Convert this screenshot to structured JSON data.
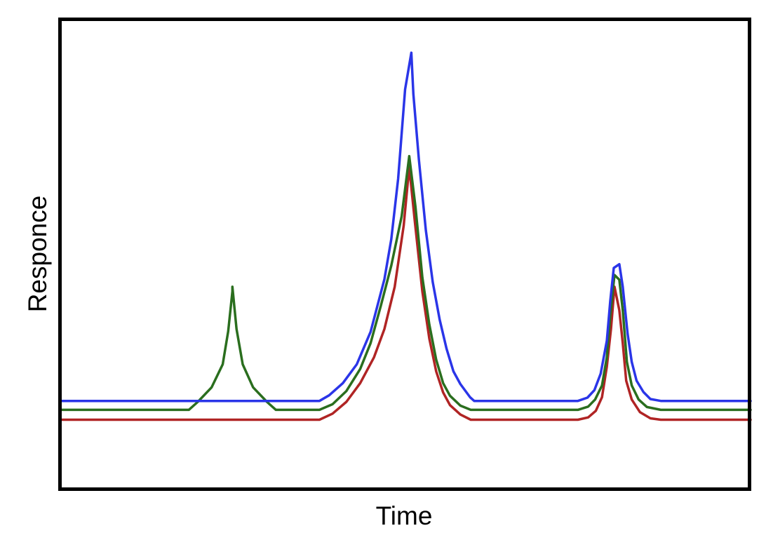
{
  "chart_data": {
    "type": "line",
    "title": "",
    "xlabel": "Time",
    "ylabel": "Responce",
    "grid": false,
    "legend": "none",
    "xlim": [
      0,
      100
    ],
    "ylim": [
      0,
      100
    ],
    "series": [
      {
        "color": "#2a35e8",
        "points": [
          [
            0,
            18.7
          ],
          [
            37.6,
            18.7
          ],
          [
            39,
            19.9
          ],
          [
            41,
            22.5
          ],
          [
            43,
            26.5
          ],
          [
            45,
            33.4
          ],
          [
            47,
            44.6
          ],
          [
            48,
            53.1
          ],
          [
            49,
            66
          ],
          [
            50,
            85
          ],
          [
            50.9,
            92.8
          ],
          [
            51.2,
            84
          ],
          [
            52,
            70
          ],
          [
            53,
            55
          ],
          [
            54,
            44
          ],
          [
            55,
            36
          ],
          [
            56,
            29.8
          ],
          [
            57,
            25
          ],
          [
            58,
            22.3
          ],
          [
            59.4,
            19.5
          ],
          [
            60,
            18.7
          ],
          [
            75,
            18.7
          ],
          [
            76.4,
            19.4
          ],
          [
            77.4,
            21
          ],
          [
            78.3,
            24.5
          ],
          [
            79.2,
            31.5
          ],
          [
            79.7,
            40
          ],
          [
            80.2,
            47
          ],
          [
            81,
            47.8
          ],
          [
            81.5,
            43
          ],
          [
            82.2,
            33
          ],
          [
            82.8,
            27
          ],
          [
            83.5,
            23
          ],
          [
            84.5,
            20.6
          ],
          [
            85.5,
            19.1
          ],
          [
            87,
            18.7
          ],
          [
            100,
            18.7
          ]
        ]
      },
      {
        "color": "#2a6e1e",
        "points": [
          [
            0,
            16.8
          ],
          [
            18.7,
            16.8
          ],
          [
            20,
            18.5
          ],
          [
            22,
            21.6
          ],
          [
            23.6,
            26.5
          ],
          [
            24.4,
            33.5
          ],
          [
            25,
            42
          ],
          [
            25,
            43
          ],
          [
            25.6,
            34
          ],
          [
            26.5,
            26.5
          ],
          [
            28,
            21.6
          ],
          [
            30,
            18.5
          ],
          [
            31.3,
            16.8
          ],
          [
            37.6,
            16.8
          ],
          [
            39.5,
            18
          ],
          [
            41.5,
            20.8
          ],
          [
            43.5,
            25.5
          ],
          [
            45,
            31
          ],
          [
            46.5,
            39
          ],
          [
            48,
            47.5
          ],
          [
            49.5,
            58
          ],
          [
            50.6,
            70.8
          ],
          [
            51.5,
            60
          ],
          [
            52.5,
            45
          ],
          [
            53.5,
            35
          ],
          [
            54.5,
            27.5
          ],
          [
            55.5,
            22.5
          ],
          [
            56.5,
            19.8
          ],
          [
            58,
            17.7
          ],
          [
            59.5,
            16.8
          ],
          [
            75,
            16.8
          ],
          [
            76.5,
            17.5
          ],
          [
            77.5,
            19
          ],
          [
            78.5,
            22
          ],
          [
            79.2,
            28
          ],
          [
            79.7,
            37
          ],
          [
            80.3,
            45.5
          ],
          [
            81,
            44.5
          ],
          [
            81.5,
            38
          ],
          [
            82.1,
            27
          ],
          [
            82.8,
            22
          ],
          [
            83.8,
            19
          ],
          [
            85,
            17.4
          ],
          [
            87,
            16.8
          ],
          [
            100,
            16.8
          ]
        ]
      },
      {
        "color": "#b02424",
        "points": [
          [
            0,
            14.7
          ],
          [
            37.6,
            14.7
          ],
          [
            39.5,
            16
          ],
          [
            41.5,
            18.5
          ],
          [
            43.5,
            22.5
          ],
          [
            45.5,
            28
          ],
          [
            47,
            34
          ],
          [
            48.5,
            43
          ],
          [
            49.8,
            56
          ],
          [
            50.6,
            68.5
          ],
          [
            51.4,
            57
          ],
          [
            52.5,
            42
          ],
          [
            53.5,
            32
          ],
          [
            54.5,
            25
          ],
          [
            55.5,
            20.5
          ],
          [
            56.5,
            17.8
          ],
          [
            58,
            15.8
          ],
          [
            59.5,
            14.7
          ],
          [
            75,
            14.7
          ],
          [
            76.5,
            15.2
          ],
          [
            77.6,
            16.6
          ],
          [
            78.5,
            19.5
          ],
          [
            79.2,
            26
          ],
          [
            79.8,
            34
          ],
          [
            80.3,
            43
          ],
          [
            81,
            38
          ],
          [
            81.5,
            31
          ],
          [
            82,
            23
          ],
          [
            82.8,
            19
          ],
          [
            84,
            16.3
          ],
          [
            85.5,
            15
          ],
          [
            87,
            14.7
          ],
          [
            100,
            14.7
          ]
        ]
      }
    ]
  }
}
